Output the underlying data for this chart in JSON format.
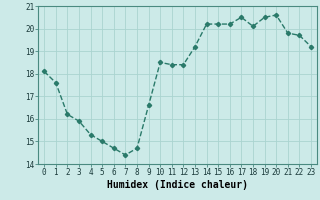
{
  "x": [
    0,
    1,
    2,
    3,
    4,
    5,
    6,
    7,
    8,
    9,
    10,
    11,
    12,
    13,
    14,
    15,
    16,
    17,
    18,
    19,
    20,
    21,
    22,
    23
  ],
  "y": [
    18.1,
    17.6,
    16.2,
    15.9,
    15.3,
    15.0,
    14.7,
    14.4,
    14.7,
    16.6,
    18.5,
    18.4,
    18.4,
    19.2,
    20.2,
    20.2,
    20.2,
    20.5,
    20.1,
    20.5,
    20.6,
    19.8,
    19.7,
    19.2
  ],
  "line_color": "#2a7a6a",
  "marker": "D",
  "marker_size": 2.2,
  "bg_color": "#cceae8",
  "grid_color": "#aad4d0",
  "xlabel": "Humidex (Indice chaleur)",
  "xlim": [
    -0.5,
    23.5
  ],
  "ylim": [
    14,
    21
  ],
  "yticks": [
    14,
    15,
    16,
    17,
    18,
    19,
    20,
    21
  ],
  "xticks": [
    0,
    1,
    2,
    3,
    4,
    5,
    6,
    7,
    8,
    9,
    10,
    11,
    12,
    13,
    14,
    15,
    16,
    17,
    18,
    19,
    20,
    21,
    22,
    23
  ],
  "xticklabels": [
    "0",
    "1",
    "2",
    "3",
    "4",
    "5",
    "6",
    "7",
    "8",
    "9",
    "10",
    "11",
    "12",
    "13",
    "14",
    "15",
    "16",
    "17",
    "18",
    "19",
    "20",
    "21",
    "22",
    "23"
  ],
  "tick_fontsize": 5.5,
  "xlabel_fontsize": 7,
  "line_width": 1.0
}
